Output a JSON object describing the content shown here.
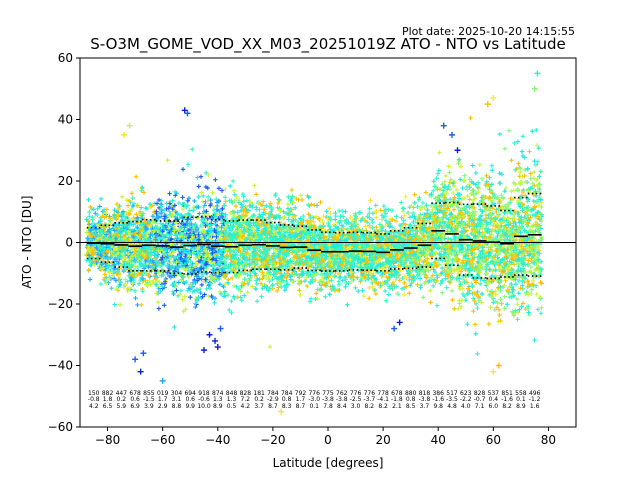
{
  "chart_data": {
    "type": "scatter",
    "plot_date": "Plot date: 2025-10-20 14:15:55",
    "title": "S-O3M_GOME_VOD_XX_M03_20251019Z ATO - NTO vs Latitude",
    "xlabel": "Latitude [degrees]",
    "ylabel": "ATO - NTO [DU]",
    "xlim": [
      -90,
      90
    ],
    "ylim": [
      -60,
      60
    ],
    "xticks": [
      -80,
      -60,
      -40,
      -20,
      0,
      20,
      40,
      60,
      80
    ],
    "yticks": [
      -60,
      -40,
      -20,
      0,
      20,
      40,
      60
    ],
    "grid": false,
    "legend": "none",
    "marker": "+",
    "reference_line_y": 0,
    "colors": {
      "aquamarine": "#33f5c7",
      "cyan": "#22e8e0",
      "light_green": "#88f77a",
      "yellow_green": "#c8f53a",
      "yellow": "#f5e833",
      "orange": "#ffbe00",
      "blue_light": "#1fa8ff",
      "blue": "#1a5cf0",
      "blue_dark": "#0a1ee0"
    },
    "bins": {
      "lat": [
        -85,
        -80,
        -75,
        -70,
        -65,
        -60,
        -55,
        -50,
        -45,
        -40,
        -35,
        -30,
        -25,
        -20,
        -15,
        -10,
        -5,
        0,
        5,
        10,
        15,
        20,
        25,
        30,
        35,
        40,
        45,
        50,
        55,
        60,
        65,
        70,
        75
      ],
      "mean": [
        -0.2,
        -0.4,
        -0.8,
        -1.2,
        -0.9,
        -1.1,
        -1.5,
        -1.0,
        -0.6,
        -1.2,
        -1.4,
        -0.9,
        -0.7,
        -1.1,
        -1.6,
        -1.5,
        -2.5,
        -3.0,
        -3.0,
        -2.8,
        -2.9,
        -3.2,
        -2.4,
        -1.8,
        -0.9,
        3.8,
        2.8,
        0.9,
        0.5,
        0.1,
        -0.4,
        2.0,
        2.5
      ],
      "std": [
        5.0,
        6.0,
        7.2,
        8.0,
        8.3,
        8.1,
        8.5,
        9.2,
        9.0,
        8.6,
        8.4,
        8.2,
        8.0,
        7.6,
        7.3,
        6.8,
        6.6,
        6.3,
        6.2,
        6.1,
        6.1,
        6.0,
        6.2,
        6.6,
        7.1,
        9.0,
        10.2,
        11.5,
        12.0,
        11.8,
        10.8,
        12.6,
        13.4
      ],
      "stat_counts": [
        "150",
        "882",
        "447",
        "678",
        "855",
        "019",
        "304",
        "694",
        "918",
        "874",
        "848",
        "828",
        "181",
        "784",
        "784",
        "792",
        "776",
        "775",
        "762",
        "776",
        "776",
        "778",
        "678",
        "880",
        "818",
        "386",
        "517",
        "623",
        "828",
        "537",
        "851",
        "558",
        "496"
      ],
      "stat_means": [
        "-0.8",
        "1.8",
        "0.2",
        "0.6",
        "-1.5",
        "1.7",
        "3.1",
        "0.6",
        "-0.6",
        "1.3",
        "1.3",
        "7.2",
        "0.2",
        "-2.9",
        "0.8",
        "1.7",
        "-3.0",
        "-3.8",
        "-3.8",
        "-2.5",
        "-3.7",
        "-4.1",
        "-1.8",
        "0.8",
        "-3.8",
        "-1.6",
        "-3.5",
        "-2.2",
        "-0.7",
        "0.4",
        "-1.6",
        "0.1",
        "-1.2"
      ],
      "stat_stds": [
        "4.2",
        "6.5",
        "5.9",
        "6.9",
        "3.9",
        "2.9",
        "8.8",
        "9.9",
        "10.0",
        "8.9",
        "0.5",
        "4.2",
        "3.7",
        "8.7",
        "8.3",
        "8.7",
        "0.1",
        "7.8",
        "8.4",
        "3.0",
        "8.2",
        "8.2",
        "2.1",
        "8.5",
        "3.7",
        "9.8",
        "4.8",
        "4.0",
        "7.1",
        "6.0",
        "8.2",
        "8.9",
        "1.6"
      ]
    }
  }
}
